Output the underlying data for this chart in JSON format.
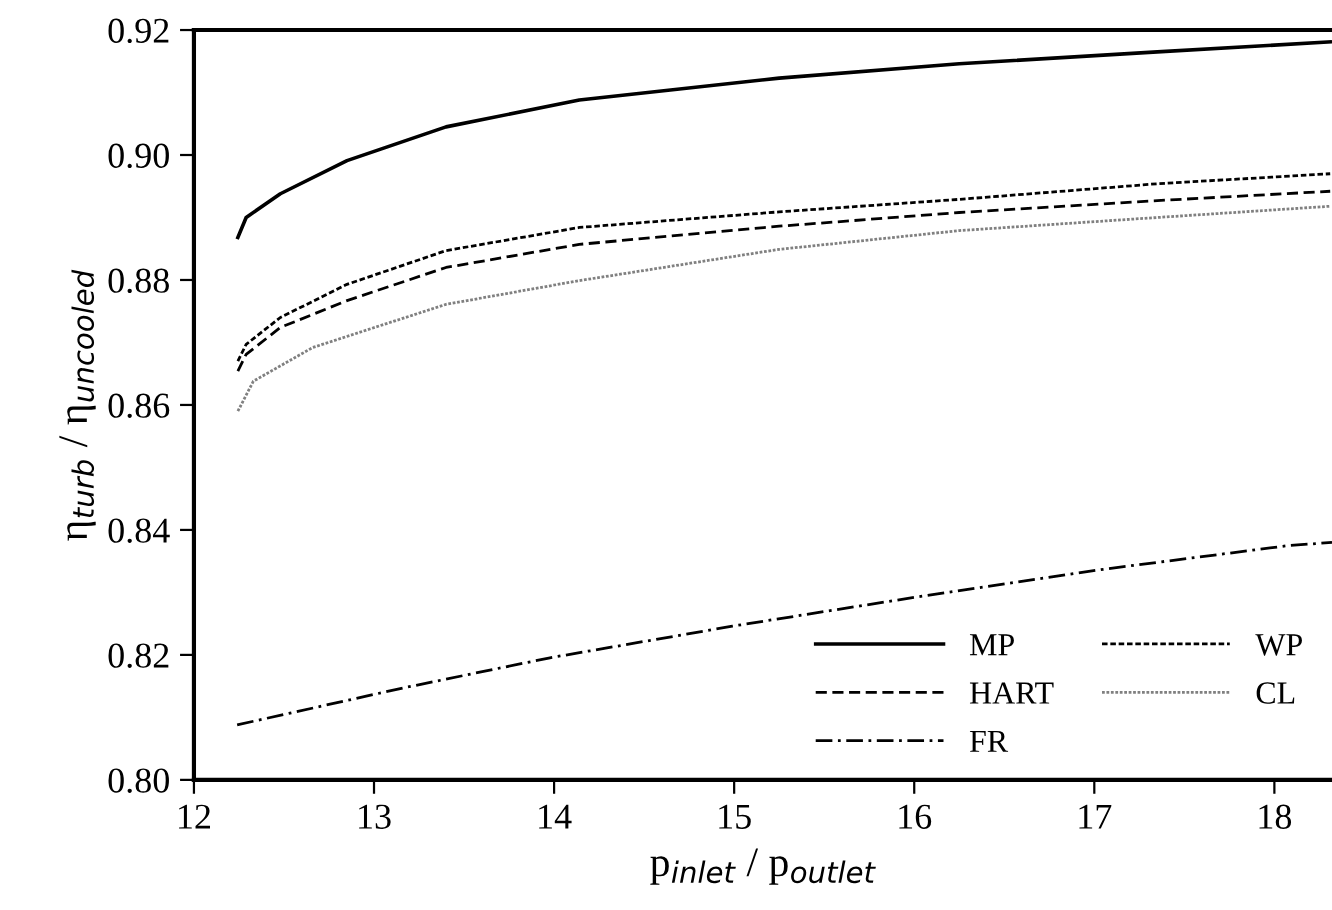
{
  "chart_data": {
    "type": "line",
    "xlabel": "p$_{inlet}$ / p$_{outlet}$",
    "ylabel": "η$_{turb}$ / η$_{uncooled}$",
    "xlim": [
      12,
      18.32
    ],
    "xticks": [
      12,
      13,
      14,
      15,
      16,
      17,
      18
    ],
    "ylim": [
      0.8,
      0.92
    ],
    "yticks": [
      {
        "value": 0.8,
        "label": "0.80"
      },
      {
        "value": 0.82,
        "label": "0.82"
      },
      {
        "value": 0.84,
        "label": "0.84"
      },
      {
        "value": 0.86,
        "label": "0.86"
      },
      {
        "value": 0.88,
        "label": "0.88"
      },
      {
        "value": 0.9,
        "label": "0.90"
      },
      {
        "value": 0.92,
        "label": "0.92"
      }
    ],
    "grid": false,
    "legend": "bottom right",
    "marker": "none",
    "series": [
      {
        "name": "MP",
        "color": "#000000",
        "line_style": "solid",
        "x": [
          12.244,
          12.29,
          12.48,
          12.85,
          13.4,
          14.14,
          15.25,
          16.25,
          17.35,
          18.31
        ],
        "values": [
          0.8868,
          0.89,
          0.8938,
          0.8991,
          0.9045,
          0.9088,
          0.9123,
          0.9146,
          0.9165,
          0.9181
        ]
      },
      {
        "name": "HART",
        "color": "#000000",
        "line_style": "dashed",
        "x": [
          12.244,
          12.29,
          12.48,
          12.85,
          13.4,
          14.14,
          15.25,
          16.25,
          17.35,
          18.31
        ],
        "values": [
          0.8654,
          0.8681,
          0.8724,
          0.8767,
          0.882,
          0.8857,
          0.8886,
          0.8908,
          0.8927,
          0.8942
        ]
      },
      {
        "name": "FR",
        "color": "#000000",
        "line_style": "dashdot",
        "x": [
          12.24,
          13.16,
          13.97,
          14.99,
          16.02,
          17.05,
          18.08,
          18.32
        ],
        "values": [
          0.8088,
          0.8147,
          0.8195,
          0.8246,
          0.8293,
          0.8337,
          0.8375,
          0.838
        ]
      },
      {
        "name": "WP",
        "color": "#000000",
        "line_style": "densely dashed",
        "x": [
          12.244,
          12.29,
          12.48,
          12.85,
          13.4,
          14.14,
          15.25,
          16.25,
          17.35,
          18.31
        ],
        "values": [
          0.867,
          0.8697,
          0.874,
          0.8793,
          0.8847,
          0.8884,
          0.8909,
          0.8929,
          0.8954,
          0.897
        ]
      },
      {
        "name": "CL",
        "color": "#808080",
        "line_style": "dotted",
        "x": [
          12.244,
          12.33,
          12.66,
          13.4,
          14.14,
          15.25,
          16.25,
          17.35,
          18.31
        ],
        "values": [
          0.859,
          0.8638,
          0.8692,
          0.8761,
          0.8799,
          0.8849,
          0.8879,
          0.89,
          0.8918
        ]
      }
    ]
  }
}
